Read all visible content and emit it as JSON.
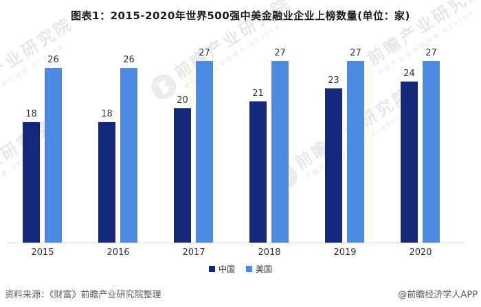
{
  "title": "图表1：2015-2020年世界500强中美金融业企业上榜数量(单位：家)",
  "chart_data": {
    "type": "bar",
    "categories": [
      "2015",
      "2016",
      "2017",
      "2018",
      "2019",
      "2020"
    ],
    "series": [
      {
        "name": "中国",
        "color": "#13297E",
        "values": [
          18,
          18,
          20,
          21,
          23,
          24
        ]
      },
      {
        "name": "美国",
        "color": "#4C8BE2",
        "values": [
          26,
          26,
          27,
          27,
          27,
          27
        ]
      }
    ],
    "title": "图表1：2015-2020年世界500强中美金融业企业上榜数量(单位：家)",
    "xlabel": "",
    "ylabel": "",
    "ylim": [
      0,
      30
    ],
    "grid": false,
    "legend_position": "bottom-center",
    "value_labels": true,
    "axis_line_color": "#d9d9d9"
  },
  "legend": {
    "china_label": "中国",
    "us_label": "美国"
  },
  "footer": {
    "source": "资料来源：《财富》前瞻产业研究院整理",
    "credit": "@前瞻经济学人APP"
  },
  "watermark": {
    "brand": "前瞻产业研究院",
    "subtext": "中国产业咨询领导者·839599",
    "logo": "qianzhan-logo"
  },
  "colors": {
    "china_bar": "#13297E",
    "us_bar": "#4C8BE2",
    "title_text": "#1a1a1a",
    "label_text": "#333333",
    "footer_text": "#595959",
    "axis_line": "#d9d9d9"
  }
}
